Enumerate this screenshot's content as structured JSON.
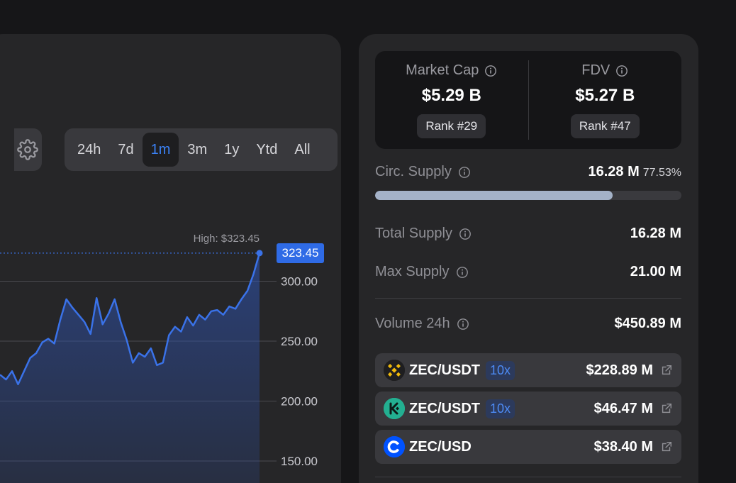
{
  "chart": {
    "range_buttons": [
      "24h",
      "7d",
      "1m",
      "3m",
      "1y",
      "Ytd",
      "All"
    ],
    "active_range": "1m",
    "high_label": "High: $323.45",
    "current_price_tag": "323.45",
    "y_ticks": [
      "300.00",
      "250.00",
      "200.00",
      "150.00"
    ],
    "line_color": "#3a72e8"
  },
  "chart_data": {
    "type": "area",
    "y_ticks": [
      300,
      250,
      200,
      150
    ],
    "ylim": [
      145,
      330
    ],
    "high": 323.45,
    "y": [
      222,
      218,
      225,
      214,
      225,
      236,
      240,
      249,
      252,
      248,
      268,
      285,
      278,
      272,
      266,
      256,
      286,
      264,
      273,
      285,
      266,
      251,
      232,
      240,
      237,
      244,
      230,
      232,
      255,
      262,
      258,
      270,
      263,
      272,
      268,
      275,
      276,
      272,
      279,
      277,
      285,
      292,
      306,
      323.45
    ]
  },
  "stats": {
    "market_cap": {
      "label": "Market Cap",
      "value": "$5.29 B",
      "rank": "Rank #29"
    },
    "fdv": {
      "label": "FDV",
      "value": "$5.27 B",
      "rank": "Rank #47"
    },
    "circ_supply": {
      "label": "Circ. Supply",
      "value": "16.28 M",
      "percent": "77.53%",
      "fraction": 0.7753
    },
    "total_supply": {
      "label": "Total Supply",
      "value": "16.28 M"
    },
    "max_supply": {
      "label": "Max Supply",
      "value": "21.00 M"
    },
    "volume_24h": {
      "label": "Volume 24h",
      "value": "$450.89 M"
    }
  },
  "pairs": [
    {
      "name": "ZEC/USDT",
      "leverage": "10x",
      "volume": "$228.89 M",
      "exchange_icon": "binance-icon",
      "color": "#f0b90b"
    },
    {
      "name": "ZEC/USDT",
      "leverage": "10x",
      "volume": "$46.47 M",
      "exchange_icon": "kucoin-icon",
      "color": "#23af91"
    },
    {
      "name": "ZEC/USD",
      "leverage": "",
      "volume": "$38.40 M",
      "exchange_icon": "coinbase-icon",
      "color": "#0052ff"
    }
  ]
}
